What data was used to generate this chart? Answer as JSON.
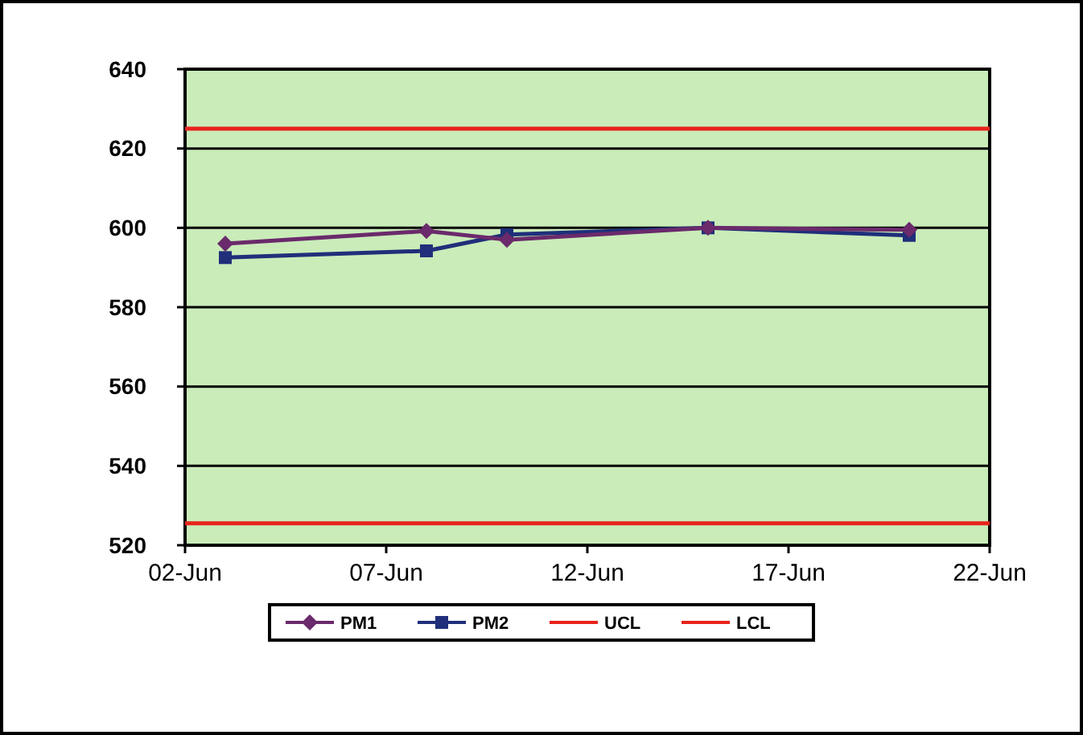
{
  "chart_data": {
    "type": "line",
    "x": [
      "--06-03",
      "--06-08",
      "--06-10",
      "--06-15",
      "--06-20"
    ],
    "series": [
      {
        "name": "PM1",
        "color": "#6b2a6b",
        "marker": "diamond",
        "values": [
          596,
          599.2,
          597,
          600,
          599.5
        ]
      },
      {
        "name": "PM2",
        "color": "#1f2f7a",
        "marker": "square",
        "values": [
          592.5,
          594.2,
          598.3,
          600,
          598.1
        ]
      },
      {
        "name": "UCL",
        "color": "#e8231b",
        "marker": "none",
        "x": [
          "--06-02",
          "--06-22"
        ],
        "values": [
          625,
          625
        ]
      },
      {
        "name": "LCL",
        "color": "#e8231b",
        "marker": "none",
        "x": [
          "--06-02",
          "--06-22"
        ],
        "values": [
          525.5,
          525.5
        ]
      }
    ],
    "xlim": [
      "--06-02",
      "--06-22"
    ],
    "xticks": [
      {
        "value": "--06-02",
        "label": "02-Jun"
      },
      {
        "value": "--06-07",
        "label": "07-Jun"
      },
      {
        "value": "--06-12",
        "label": "12-Jun"
      },
      {
        "value": "--06-17",
        "label": "17-Jun"
      },
      {
        "value": "--06-22",
        "label": "22-Jun"
      }
    ],
    "ylim": [
      520,
      640
    ],
    "yticks": [
      520,
      540,
      560,
      580,
      600,
      620,
      640
    ],
    "grid": "y",
    "legend": "bottom",
    "line_style": "solid"
  }
}
